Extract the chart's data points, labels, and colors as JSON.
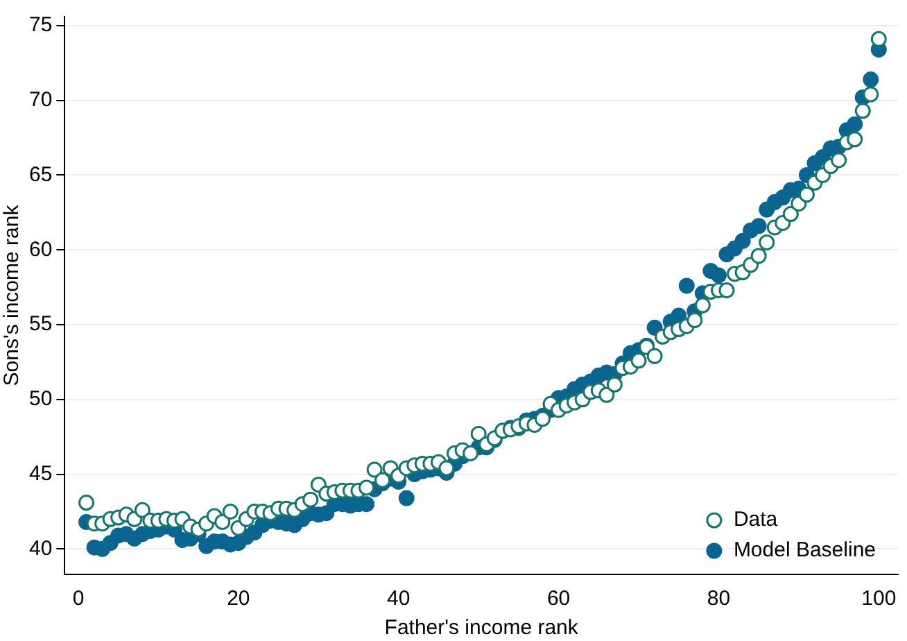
{
  "chart_data": {
    "type": "scatter",
    "xlabel": "Father's income rank",
    "ylabel": "Sons's income rank",
    "x": [
      1,
      2,
      3,
      4,
      5,
      6,
      7,
      8,
      9,
      10,
      11,
      12,
      13,
      14,
      15,
      16,
      17,
      18,
      19,
      20,
      21,
      22,
      23,
      24,
      25,
      26,
      27,
      28,
      29,
      30,
      31,
      32,
      33,
      34,
      35,
      36,
      37,
      38,
      39,
      40,
      41,
      42,
      43,
      44,
      45,
      46,
      47,
      48,
      49,
      50,
      51,
      52,
      53,
      54,
      55,
      56,
      57,
      58,
      59,
      60,
      61,
      62,
      63,
      64,
      65,
      66,
      67,
      68,
      69,
      70,
      71,
      72,
      73,
      74,
      75,
      76,
      77,
      78,
      79,
      80,
      81,
      82,
      83,
      84,
      85,
      86,
      87,
      88,
      89,
      90,
      91,
      92,
      93,
      94,
      95,
      96,
      97,
      98,
      99,
      100
    ],
    "series": [
      {
        "name": "Data",
        "color": "#17766c",
        "values": [
          43.1,
          41.7,
          41.7,
          42.0,
          42.1,
          42.3,
          42.0,
          42.6,
          41.9,
          41.9,
          42.0,
          41.9,
          42.0,
          41.5,
          41.3,
          41.7,
          42.2,
          41.8,
          42.5,
          41.4,
          42.0,
          42.5,
          42.5,
          42.4,
          42.7,
          42.7,
          42.6,
          43.0,
          43.3,
          44.3,
          43.7,
          43.8,
          43.9,
          43.9,
          43.9,
          44.1,
          45.3,
          44.6,
          45.4,
          44.9,
          45.4,
          45.6,
          45.7,
          45.7,
          45.8,
          45.4,
          46.4,
          46.6,
          46.4,
          47.7,
          47.0,
          47.4,
          47.9,
          48.0,
          48.2,
          48.4,
          48.3,
          48.7,
          49.7,
          49.3,
          49.6,
          49.8,
          50.0,
          50.5,
          50.6,
          50.3,
          51.0,
          52.1,
          52.2,
          52.6,
          53.5,
          52.9,
          54.2,
          54.5,
          54.7,
          54.9,
          55.3,
          56.3,
          57.2,
          57.3,
          57.3,
          58.4,
          58.5,
          59.0,
          59.6,
          60.5,
          61.5,
          61.8,
          62.4,
          63.1,
          63.7,
          64.5,
          65.0,
          65.6,
          66.0,
          67.2,
          67.4,
          69.3,
          70.4,
          74.1
        ]
      },
      {
        "name": "Model Baseline",
        "color": "#0b6591",
        "values": [
          41.8,
          40.1,
          40.0,
          40.4,
          40.9,
          41.0,
          40.7,
          41.0,
          41.2,
          41.3,
          41.5,
          41.3,
          40.6,
          40.7,
          41.0,
          40.2,
          40.5,
          40.5,
          40.3,
          40.4,
          40.8,
          41.1,
          41.6,
          41.9,
          41.8,
          41.7,
          41.6,
          42.0,
          42.4,
          42.3,
          42.4,
          43.0,
          43.0,
          42.9,
          43.0,
          43.0,
          44.0,
          44.4,
          44.7,
          44.5,
          43.4,
          45.0,
          45.2,
          45.3,
          45.4,
          45.1,
          45.7,
          46.2,
          null,
          46.8,
          46.8,
          47.3,
          47.9,
          48.1,
          48.1,
          48.6,
          48.7,
          48.9,
          49.3,
          50.1,
          50.2,
          50.7,
          51.0,
          51.2,
          51.6,
          51.8,
          51.7,
          52.4,
          53.1,
          53.3,
          53.6,
          54.8,
          null,
          55.2,
          55.6,
          57.6,
          55.9,
          57.1,
          58.6,
          58.3,
          59.7,
          60.1,
          60.6,
          61.3,
          61.6,
          62.7,
          63.2,
          63.5,
          64.0,
          64.1,
          65.0,
          65.8,
          66.2,
          66.8,
          66.9,
          68.0,
          68.4,
          70.2,
          71.4,
          73.4
        ]
      }
    ],
    "xlim": [
      -1.7,
      102.4
    ],
    "xticks": [
      0,
      20,
      40,
      60,
      80,
      100
    ],
    "ylim": [
      38.3,
      75.6
    ],
    "yticks": [
      40,
      45,
      50,
      55,
      60,
      65,
      70,
      75
    ],
    "grid": "y",
    "legend": "bottom right",
    "marker": "circle"
  }
}
